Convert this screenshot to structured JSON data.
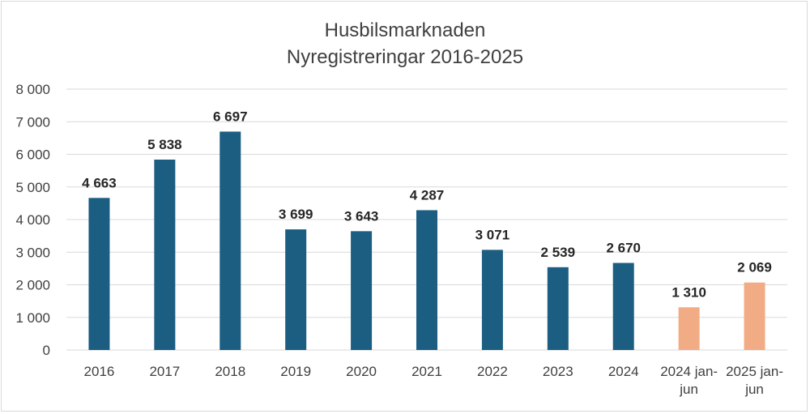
{
  "chart_data": {
    "type": "bar",
    "title": "Husbilsmarknaden",
    "subtitle": "Nyregistreringar 2016-2025",
    "categories": [
      "2016",
      "2017",
      "2018",
      "2019",
      "2020",
      "2021",
      "2022",
      "2023",
      "2024",
      "2024 jan-jun",
      "2025 jan-jun"
    ],
    "values": [
      4663,
      5838,
      6697,
      3699,
      3643,
      4287,
      3071,
      2539,
      2670,
      1310,
      2069
    ],
    "data_labels": [
      "4 663",
      "5 838",
      "6 697",
      "3 699",
      "3 643",
      "4 287",
      "3 071",
      "2 539",
      "2 670",
      "1 310",
      "2 069"
    ],
    "colors": [
      "#1b5e82",
      "#1b5e82",
      "#1b5e82",
      "#1b5e82",
      "#1b5e82",
      "#1b5e82",
      "#1b5e82",
      "#1b5e82",
      "#1b5e82",
      "#f2ac85",
      "#f2ac85"
    ],
    "ylim": [
      0,
      8000
    ],
    "yticks": [
      0,
      1000,
      2000,
      3000,
      4000,
      5000,
      6000,
      7000,
      8000
    ],
    "ytick_labels": [
      "0",
      "1 000",
      "2 000",
      "3 000",
      "4 000",
      "5 000",
      "6 000",
      "7 000",
      "8 000"
    ],
    "grid": true,
    "xlabel": "",
    "ylabel": ""
  }
}
